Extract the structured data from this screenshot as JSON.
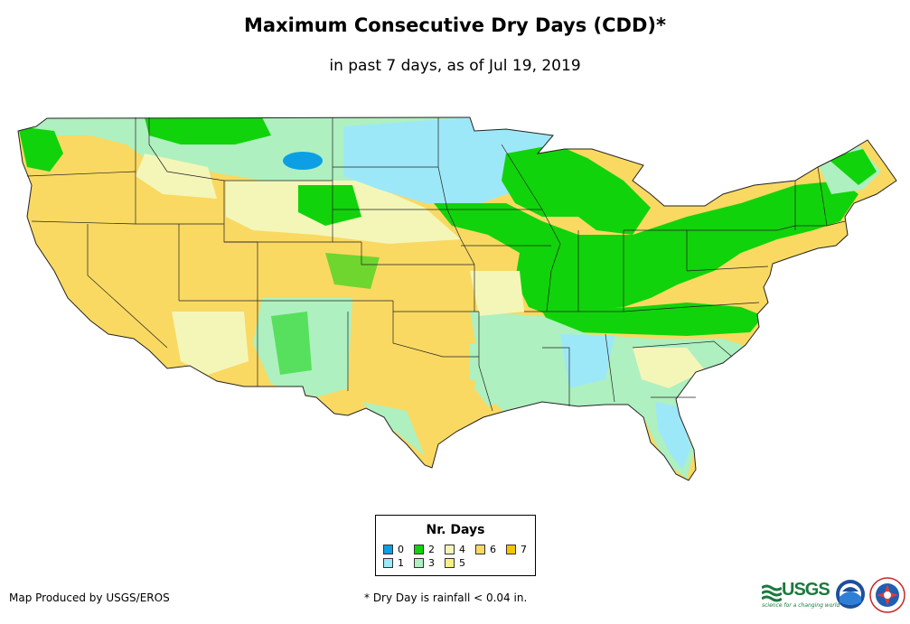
{
  "title": "Maximum Consecutive Dry Days (CDD)*",
  "subtitle": "in past 7 days, as of Jul 19, 2019",
  "legend": {
    "title": "Nr. Days",
    "items": [
      {
        "label": "0",
        "color": "#0d9fe4"
      },
      {
        "label": "1",
        "color": "#9de8f8"
      },
      {
        "label": "2",
        "color": "#11d30b"
      },
      {
        "label": "3",
        "color": "#aef0c0"
      },
      {
        "label": "4",
        "color": "#f4f6b8"
      },
      {
        "label": "5",
        "color": "#faef85"
      },
      {
        "label": "6",
        "color": "#f9d962"
      },
      {
        "label": "7",
        "color": "#f7c300"
      }
    ]
  },
  "credit": "Map Produced by USGS/EROS",
  "footnote": "* Dry Day is rainfall < 0.04 in.",
  "logos": {
    "usgs": "USGS",
    "usgs_tagline": "science for a changing world"
  },
  "icons": [
    "usgs-logo",
    "noaa-logo-icon",
    "nws-logo-icon"
  ]
}
